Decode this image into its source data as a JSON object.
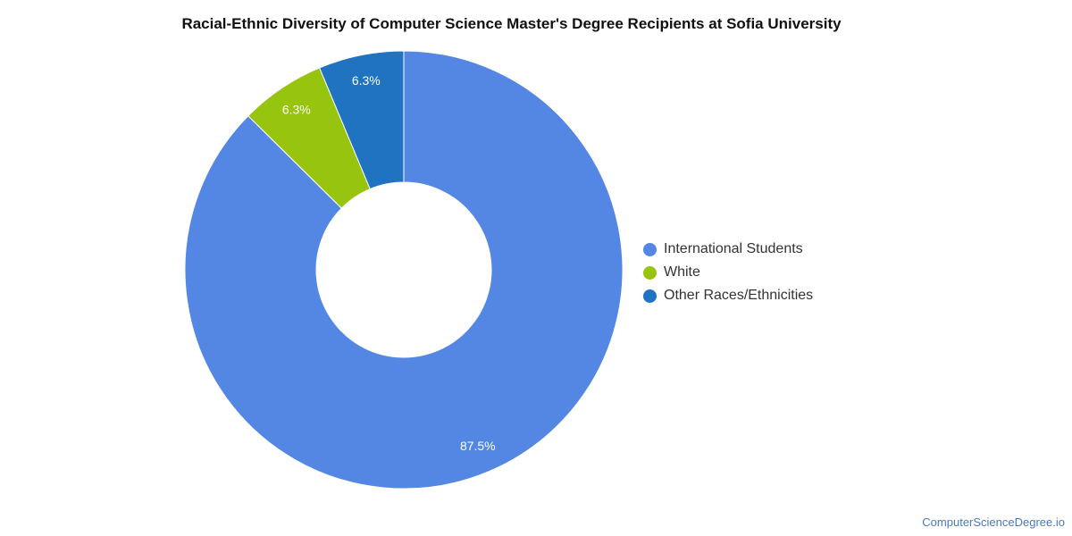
{
  "chart_data": {
    "type": "pie",
    "variant": "donut",
    "title": "Racial-Ethnic Diversity of Computer Science Master's Degree Recipients at Sofia University",
    "categories": [
      "International Students",
      "White",
      "Other Races/Ethnicities"
    ],
    "values": [
      87.5,
      6.3,
      6.3
    ],
    "labels": [
      "87.5%",
      "6.3%",
      "6.3%"
    ],
    "colors": [
      "#5486e3",
      "#97c40f",
      "#1f73c1"
    ],
    "legend_position": "right",
    "start_angle": "top",
    "direction": "clockwise"
  },
  "footer": {
    "credit": "ComputerScienceDegree.io"
  }
}
